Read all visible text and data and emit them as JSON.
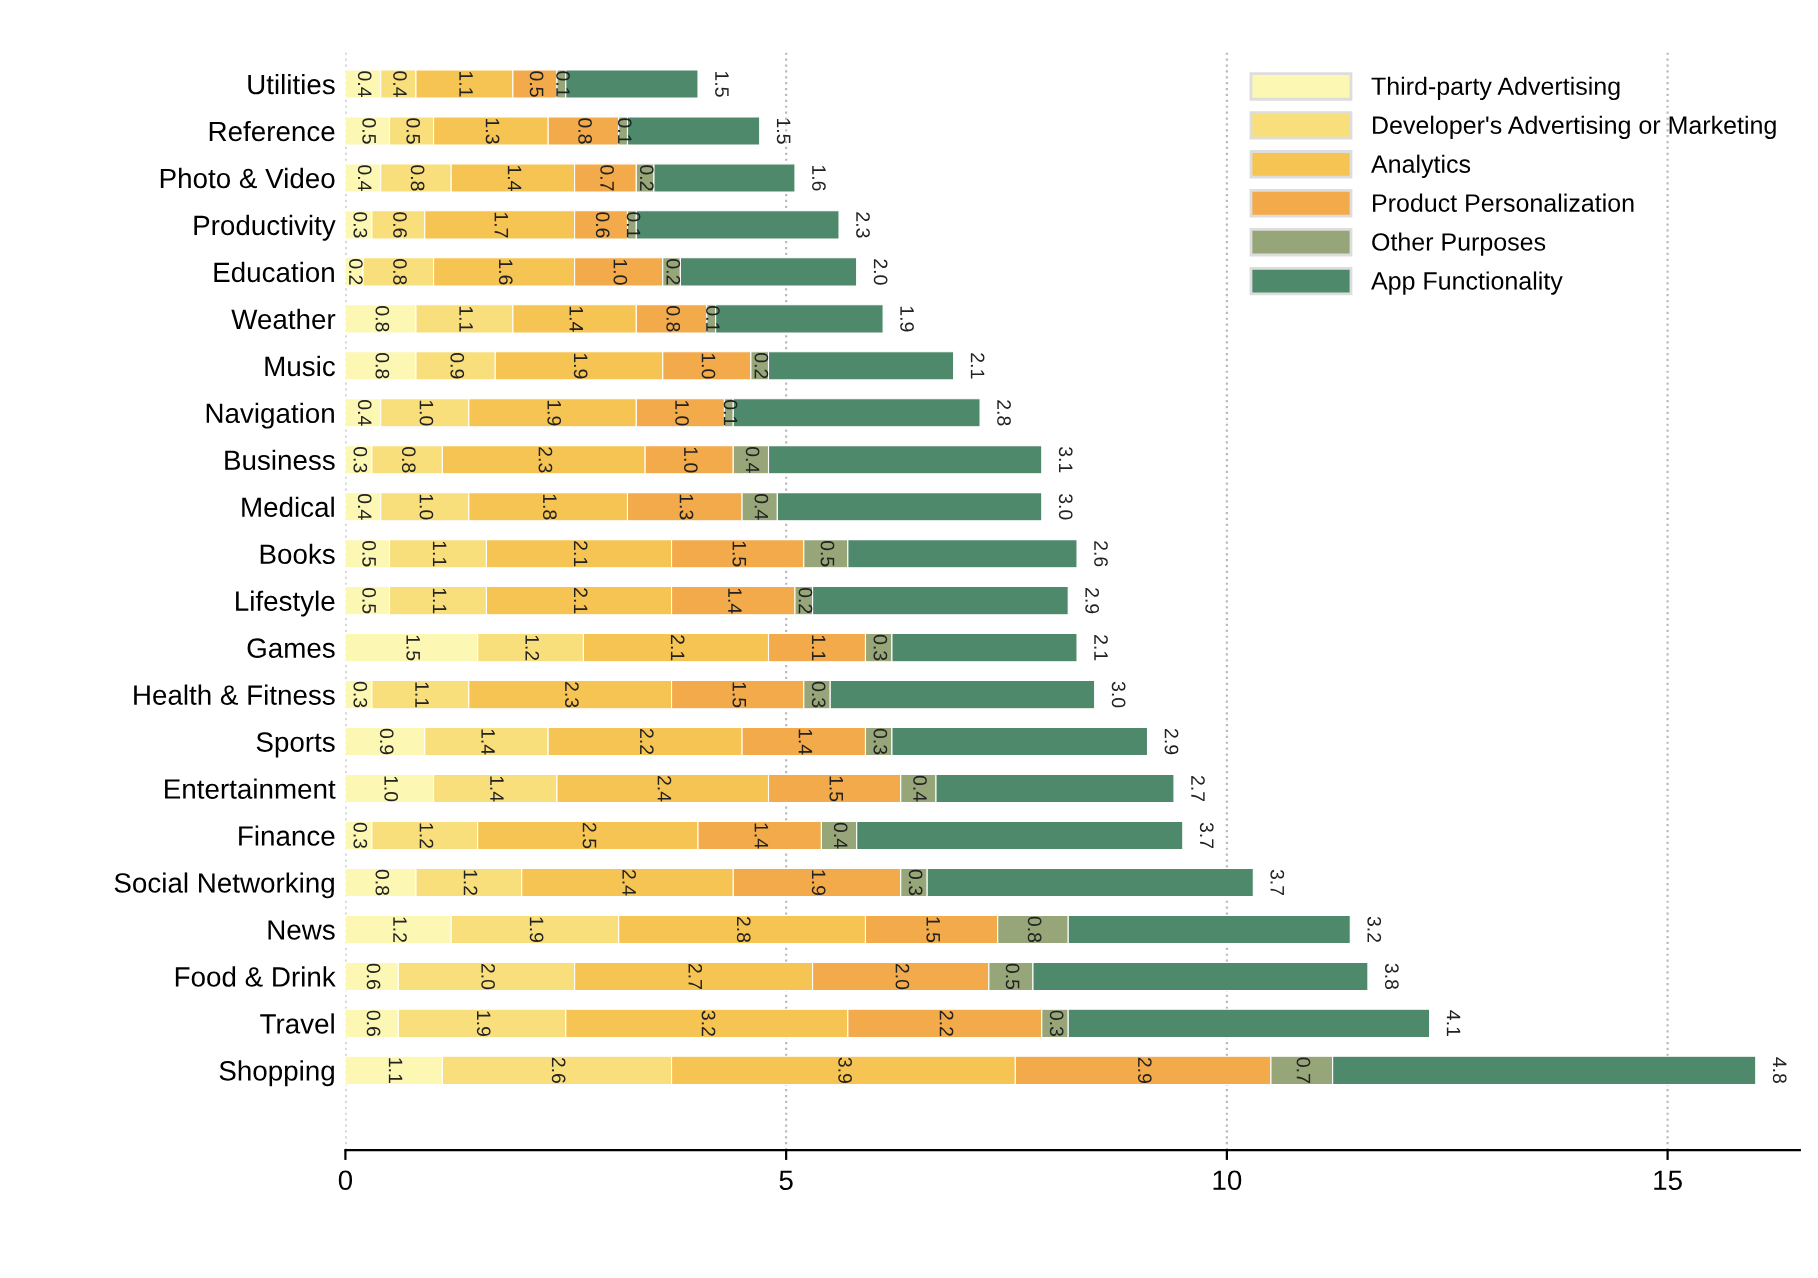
{
  "chart_data": {
    "type": "bar",
    "orientation": "horizontal",
    "stacked": true,
    "categories": [
      "Utilities",
      "Reference",
      "Photo & Video",
      "Productivity",
      "Education",
      "Weather",
      "Music",
      "Navigation",
      "Business",
      "Medical",
      "Books",
      "Lifestyle",
      "Games",
      "Health & Fitness",
      "Sports",
      "Entertainment",
      "Finance",
      "Social Networking",
      "News",
      "Food & Drink",
      "Travel",
      "Shopping"
    ],
    "series": [
      {
        "name": "Third-party Advertising",
        "color": "#fdf7b4",
        "values": [
          0.4,
          0.5,
          0.4,
          0.3,
          0.2,
          0.8,
          0.8,
          0.4,
          0.3,
          0.4,
          0.5,
          0.5,
          1.5,
          0.3,
          0.9,
          1.0,
          0.3,
          0.8,
          1.2,
          0.6,
          0.6,
          1.1
        ],
        "value_labels": [
          "0.4",
          "0.5",
          "0.4",
          "0.3",
          "0.2",
          "0.8",
          "0.8",
          "0.4",
          "0.3",
          "0.4",
          "0.5",
          "0.5",
          "1.5",
          "0.3",
          "0.9",
          "1.0",
          "0.3",
          "0.8",
          "1.2",
          "0.6",
          "0.6",
          "1.1"
        ]
      },
      {
        "name": "Developer's Advertising or Marketing",
        "color": "#f9df7c",
        "values": [
          0.4,
          0.5,
          0.8,
          0.6,
          0.8,
          1.1,
          0.9,
          1.0,
          0.8,
          1.0,
          1.1,
          1.1,
          1.2,
          1.1,
          1.4,
          1.4,
          1.2,
          1.2,
          1.9,
          2.0,
          1.9,
          2.6
        ],
        "value_labels": [
          "0.4",
          "0.5",
          "0.8",
          "0.6",
          "0.8",
          "1.1",
          "0.9",
          "1.0",
          "0.8",
          "1.0",
          "1.1",
          "1.1",
          "1.2",
          "1.1",
          "1.4",
          "1.4",
          "1.2",
          "1.2",
          "1.9",
          "2.0",
          "1.9",
          "2.6"
        ]
      },
      {
        "name": "Analytics",
        "color": "#f6c453",
        "values": [
          1.1,
          1.3,
          1.4,
          1.7,
          1.6,
          1.4,
          1.9,
          1.9,
          2.3,
          1.8,
          2.1,
          2.1,
          2.1,
          2.3,
          2.2,
          2.4,
          2.5,
          2.4,
          2.8,
          2.7,
          3.2,
          3.9
        ],
        "value_labels": [
          "1.1",
          "1.3",
          "1.4",
          "1.7",
          "1.6",
          "1.4",
          "1.9",
          "1.9",
          "2.3",
          "1.8",
          "2.1",
          "2.1",
          "2.1",
          "2.3",
          "2.2",
          "2.4",
          "2.5",
          "2.4",
          "2.8",
          "2.7",
          "3.2",
          "3.9"
        ]
      },
      {
        "name": "Product Personalization",
        "color": "#f2aa4a",
        "values": [
          0.5,
          0.8,
          0.7,
          0.6,
          1.0,
          0.8,
          1.0,
          1.0,
          1.0,
          1.3,
          1.5,
          1.4,
          1.1,
          1.5,
          1.4,
          1.5,
          1.4,
          1.9,
          1.5,
          2.0,
          2.2,
          2.9
        ],
        "value_labels": [
          "0.5",
          "0.8",
          "0.7",
          "0.6",
          "1.0",
          "0.8",
          "1.0",
          "1.0",
          "1.0",
          "1.3",
          "1.5",
          "1.4",
          "1.1",
          "1.5",
          "1.4",
          "1.5",
          "1.4",
          "1.9",
          "1.5",
          "2.0",
          "2.2",
          "2.9"
        ]
      },
      {
        "name": "Other Purposes",
        "color": "#97a679",
        "values": [
          0.1,
          0.1,
          0.2,
          0.1,
          0.2,
          0.1,
          0.2,
          0.1,
          0.4,
          0.4,
          0.5,
          0.2,
          0.3,
          0.3,
          0.3,
          0.4,
          0.4,
          0.3,
          0.8,
          0.5,
          0.3,
          0.7
        ],
        "value_labels": [
          "0.1",
          "0.1",
          "0.2",
          "0.1",
          "0.2",
          "0.1",
          "0.2",
          "0.1",
          "0.4",
          "0.4",
          "0.5",
          "0.2",
          "0.3",
          "0.3",
          "0.3",
          "0.4",
          "0.4",
          "0.3",
          "0.8",
          "0.5",
          "0.3",
          "0.7"
        ]
      },
      {
        "name": "App Functionality",
        "color": "#4f896b",
        "values": [
          1.5,
          1.5,
          1.6,
          2.3,
          2.0,
          1.9,
          2.1,
          2.8,
          3.1,
          3.0,
          2.6,
          2.9,
          2.1,
          3.0,
          2.9,
          2.7,
          3.7,
          3.7,
          3.2,
          3.8,
          4.1,
          4.8
        ],
        "value_labels": [
          "1.5",
          "1.5",
          "1.6",
          "2.3",
          "2.0",
          "1.9",
          "2.1",
          "2.8",
          "3.1",
          "3.0",
          "2.6",
          "2.9",
          "2.1",
          "3.0",
          "2.9",
          "2.7",
          "3.7",
          "3.7",
          "3.2",
          "3.8",
          "4.1",
          "4.8"
        ]
      }
    ],
    "xlim": [
      0,
      16.5
    ],
    "xticks": [
      0,
      5,
      10,
      15
    ],
    "grid": "x",
    "legend": "top right"
  }
}
